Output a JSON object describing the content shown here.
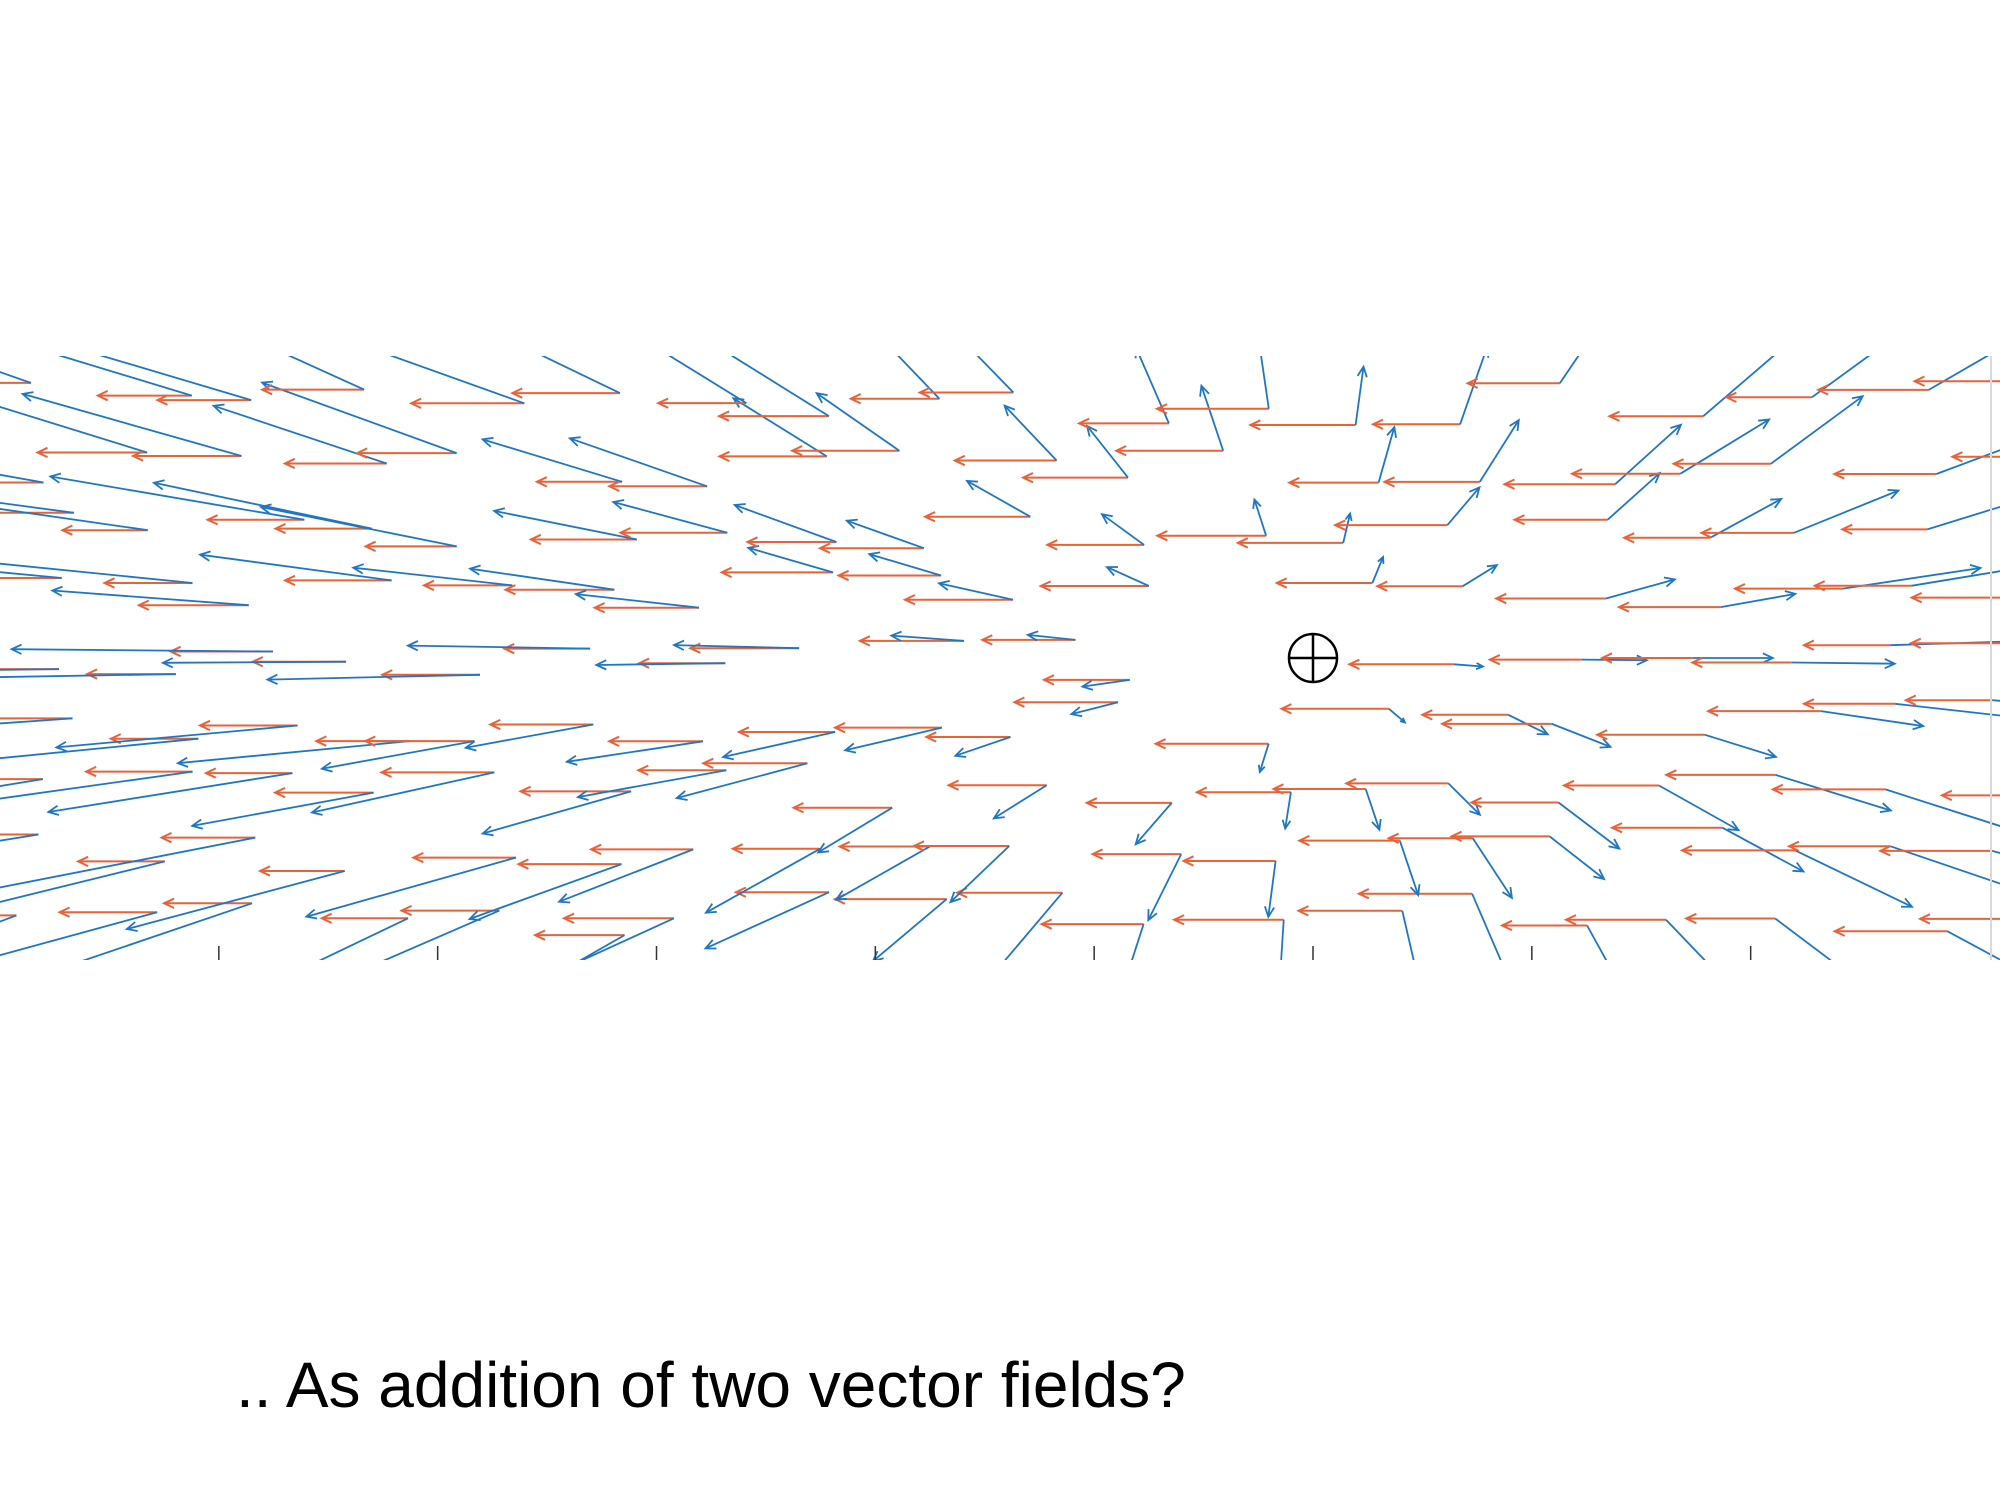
{
  "slide": {
    "caption": ".. As addition of two vector fields?"
  },
  "chart_data": {
    "type": "quiver",
    "title": "",
    "xlabel": "",
    "ylabel": "",
    "grid": false,
    "xlim": [
      -6,
      6
    ],
    "ylim": [
      -2,
      2
    ],
    "focus_marker": {
      "x": 0,
      "y": 0,
      "symbol": "circle-plus"
    },
    "colors": {
      "field_blue": "#1f77c4",
      "field_orange": "#e8623a",
      "marker": "#000000"
    },
    "series": [
      {
        "color_key": "field_blue",
        "description": "radial expansion field centered at the marker (0, 0)",
        "u": "k * x",
        "v": "k * y",
        "k": 0.22
      },
      {
        "color_key": "field_orange",
        "description": "uniform leftward translation field",
        "u": -0.45,
        "v": 0
      }
    ],
    "grid_samples": {
      "x_range": [
        -6,
        6
      ],
      "y_range": [
        -1.9,
        1.9
      ],
      "columns": 24,
      "rows": 9
    }
  }
}
